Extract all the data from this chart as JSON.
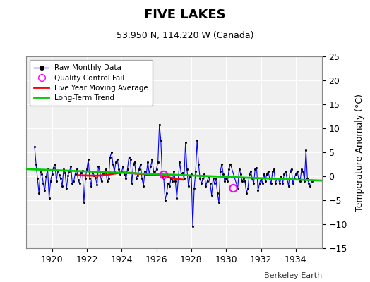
{
  "title": "FIVE LAKES",
  "subtitle": "53.950 N, 114.220 W (Canada)",
  "ylabel": "Temperature Anomaly (°C)",
  "watermark": "Berkeley Earth",
  "xlim": [
    1918.5,
    1935.5
  ],
  "ylim": [
    -15,
    25
  ],
  "yticks": [
    -15,
    -10,
    -5,
    0,
    5,
    10,
    15,
    20,
    25
  ],
  "xticks": [
    1920,
    1922,
    1924,
    1926,
    1928,
    1930,
    1932,
    1934
  ],
  "bg_color": "#ffffff",
  "plot_bg_color": "#f0f0f0",
  "raw_color": "#0000ff",
  "dot_color": "#000000",
  "ma_color": "#ff0000",
  "trend_color": "#00cc00",
  "qc_color": "#ff00ff",
  "raw_monthly": [
    [
      1919.0,
      6.2
    ],
    [
      1919.083,
      2.5
    ],
    [
      1919.167,
      -0.5
    ],
    [
      1919.25,
      -3.5
    ],
    [
      1919.333,
      1.0
    ],
    [
      1919.417,
      0.5
    ],
    [
      1919.5,
      -1.5
    ],
    [
      1919.583,
      -3.0
    ],
    [
      1919.667,
      0.0
    ],
    [
      1919.75,
      1.5
    ],
    [
      1919.833,
      -4.5
    ],
    [
      1919.917,
      -1.0
    ],
    [
      1920.0,
      0.5
    ],
    [
      1920.083,
      1.8
    ],
    [
      1920.167,
      2.5
    ],
    [
      1920.25,
      -1.0
    ],
    [
      1920.333,
      1.2
    ],
    [
      1920.417,
      0.3
    ],
    [
      1920.5,
      -0.5
    ],
    [
      1920.583,
      -2.0
    ],
    [
      1920.667,
      1.5
    ],
    [
      1920.75,
      0.8
    ],
    [
      1920.833,
      -2.5
    ],
    [
      1920.917,
      0.2
    ],
    [
      1921.0,
      1.0
    ],
    [
      1921.083,
      2.0
    ],
    [
      1921.167,
      -1.5
    ],
    [
      1921.25,
      -1.0
    ],
    [
      1921.333,
      0.5
    ],
    [
      1921.417,
      1.5
    ],
    [
      1921.5,
      -0.8
    ],
    [
      1921.583,
      -1.5
    ],
    [
      1921.667,
      0.8
    ],
    [
      1921.75,
      1.2
    ],
    [
      1921.833,
      -5.5
    ],
    [
      1921.917,
      -0.5
    ],
    [
      1922.0,
      1.5
    ],
    [
      1922.083,
      3.5
    ],
    [
      1922.167,
      -0.5
    ],
    [
      1922.25,
      -2.0
    ],
    [
      1922.333,
      0.8
    ],
    [
      1922.417,
      0.2
    ],
    [
      1922.5,
      -0.3
    ],
    [
      1922.583,
      -1.8
    ],
    [
      1922.667,
      2.0
    ],
    [
      1922.75,
      1.0
    ],
    [
      1922.833,
      -1.0
    ],
    [
      1922.917,
      0.5
    ],
    [
      1923.0,
      0.8
    ],
    [
      1923.083,
      1.5
    ],
    [
      1923.167,
      -1.0
    ],
    [
      1923.25,
      -0.5
    ],
    [
      1923.333,
      4.0
    ],
    [
      1923.417,
      5.0
    ],
    [
      1923.5,
      2.5
    ],
    [
      1923.583,
      1.0
    ],
    [
      1923.667,
      3.0
    ],
    [
      1923.75,
      3.5
    ],
    [
      1923.833,
      1.5
    ],
    [
      1923.917,
      0.5
    ],
    [
      1924.0,
      1.0
    ],
    [
      1924.083,
      2.0
    ],
    [
      1924.167,
      0.5
    ],
    [
      1924.25,
      -0.5
    ],
    [
      1924.333,
      1.5
    ],
    [
      1924.417,
      4.0
    ],
    [
      1924.5,
      3.5
    ],
    [
      1924.583,
      -1.5
    ],
    [
      1924.667,
      2.5
    ],
    [
      1924.75,
      3.0
    ],
    [
      1924.833,
      -0.5
    ],
    [
      1924.917,
      0.2
    ],
    [
      1925.0,
      1.5
    ],
    [
      1925.083,
      2.5
    ],
    [
      1925.167,
      -0.5
    ],
    [
      1925.25,
      -2.0
    ],
    [
      1925.333,
      1.0
    ],
    [
      1925.417,
      0.5
    ],
    [
      1925.5,
      3.0
    ],
    [
      1925.583,
      0.5
    ],
    [
      1925.667,
      2.0
    ],
    [
      1925.75,
      3.5
    ],
    [
      1925.833,
      1.0
    ],
    [
      1925.917,
      0.5
    ],
    [
      1926.0,
      1.5
    ],
    [
      1926.083,
      3.0
    ],
    [
      1926.167,
      10.8
    ],
    [
      1926.25,
      7.5
    ],
    [
      1926.333,
      0.0
    ],
    [
      1926.417,
      -0.5
    ],
    [
      1926.5,
      -5.0
    ],
    [
      1926.583,
      -3.5
    ],
    [
      1926.667,
      -1.5
    ],
    [
      1926.75,
      -2.0
    ],
    [
      1926.833,
      -0.5
    ],
    [
      1926.917,
      -1.0
    ],
    [
      1927.0,
      1.0
    ],
    [
      1927.083,
      -1.0
    ],
    [
      1927.167,
      -4.5
    ],
    [
      1927.25,
      -0.5
    ],
    [
      1927.333,
      3.0
    ],
    [
      1927.417,
      0.5
    ],
    [
      1927.5,
      0.8
    ],
    [
      1927.583,
      -0.5
    ],
    [
      1927.667,
      7.0
    ],
    [
      1927.75,
      1.5
    ],
    [
      1927.833,
      -2.0
    ],
    [
      1927.917,
      0.0
    ],
    [
      1928.0,
      0.5
    ],
    [
      1928.083,
      -10.5
    ],
    [
      1928.167,
      -2.5
    ],
    [
      1928.25,
      1.0
    ],
    [
      1928.333,
      7.5
    ],
    [
      1928.417,
      2.5
    ],
    [
      1928.5,
      -0.5
    ],
    [
      1928.583,
      -1.5
    ],
    [
      1928.667,
      -0.5
    ],
    [
      1928.75,
      0.5
    ],
    [
      1928.833,
      -2.0
    ],
    [
      1928.917,
      -1.0
    ],
    [
      1929.0,
      0.0
    ],
    [
      1929.083,
      -1.5
    ],
    [
      1929.167,
      -4.0
    ],
    [
      1929.25,
      -0.5
    ],
    [
      1929.333,
      -1.5
    ],
    [
      1929.417,
      -0.5
    ],
    [
      1929.5,
      -3.5
    ],
    [
      1929.583,
      -5.5
    ],
    [
      1929.667,
      1.0
    ],
    [
      1929.75,
      2.5
    ],
    [
      1929.833,
      0.5
    ],
    [
      1929.917,
      -1.0
    ],
    [
      1930.0,
      -0.5
    ],
    [
      1930.083,
      -1.0
    ],
    [
      1930.167,
      1.5
    ],
    [
      1930.25,
      2.5
    ],
    [
      1930.667,
      -2.5
    ],
    [
      1930.75,
      1.5
    ],
    [
      1930.833,
      0.5
    ],
    [
      1930.917,
      -1.0
    ],
    [
      1931.0,
      -0.5
    ],
    [
      1931.083,
      -1.0
    ],
    [
      1931.167,
      -3.5
    ],
    [
      1931.25,
      -2.5
    ],
    [
      1931.333,
      0.5
    ],
    [
      1931.417,
      1.0
    ],
    [
      1931.5,
      -0.5
    ],
    [
      1931.583,
      -1.5
    ],
    [
      1931.667,
      1.5
    ],
    [
      1931.75,
      1.8
    ],
    [
      1931.833,
      -3.0
    ],
    [
      1931.917,
      -1.5
    ],
    [
      1932.0,
      -0.5
    ],
    [
      1932.083,
      -1.5
    ],
    [
      1932.167,
      0.5
    ],
    [
      1932.25,
      -1.0
    ],
    [
      1932.333,
      0.5
    ],
    [
      1932.417,
      1.0
    ],
    [
      1932.5,
      -0.5
    ],
    [
      1932.583,
      -1.5
    ],
    [
      1932.667,
      1.0
    ],
    [
      1932.75,
      1.5
    ],
    [
      1932.833,
      -1.5
    ],
    [
      1932.917,
      -0.5
    ],
    [
      1933.0,
      -0.5
    ],
    [
      1933.083,
      -1.5
    ],
    [
      1933.167,
      0.0
    ],
    [
      1933.25,
      -1.5
    ],
    [
      1933.333,
      0.5
    ],
    [
      1933.417,
      1.0
    ],
    [
      1933.5,
      -0.5
    ],
    [
      1933.583,
      -2.0
    ],
    [
      1933.667,
      1.0
    ],
    [
      1933.75,
      1.5
    ],
    [
      1933.833,
      -1.5
    ],
    [
      1933.917,
      -0.5
    ],
    [
      1934.0,
      0.5
    ],
    [
      1934.083,
      1.0
    ],
    [
      1934.167,
      -0.5
    ],
    [
      1934.25,
      -1.0
    ],
    [
      1934.333,
      1.5
    ],
    [
      1934.417,
      1.0
    ],
    [
      1934.5,
      -1.0
    ],
    [
      1934.583,
      5.5
    ],
    [
      1934.667,
      -0.5
    ],
    [
      1934.75,
      -1.5
    ],
    [
      1934.833,
      -2.0
    ],
    [
      1934.917,
      -1.0
    ]
  ],
  "moving_avg": [
    [
      1921.5,
      0.2
    ],
    [
      1922.0,
      0.15
    ],
    [
      1922.5,
      0.1
    ],
    [
      1923.0,
      0.2
    ],
    [
      1923.5,
      0.5
    ],
    [
      1924.0,
      0.8
    ],
    [
      1924.5,
      0.7
    ],
    [
      1925.0,
      0.5
    ],
    [
      1925.5,
      0.4
    ],
    [
      1926.0,
      0.3
    ],
    [
      1926.5,
      0.0
    ],
    [
      1927.0,
      -0.5
    ],
    [
      1927.5,
      -0.7
    ]
  ],
  "trend_line": [
    [
      1918.5,
      1.5
    ],
    [
      1935.5,
      -0.9
    ]
  ],
  "qc_points": [
    [
      1926.417,
      0.3
    ],
    [
      1930.417,
      -2.5
    ]
  ]
}
